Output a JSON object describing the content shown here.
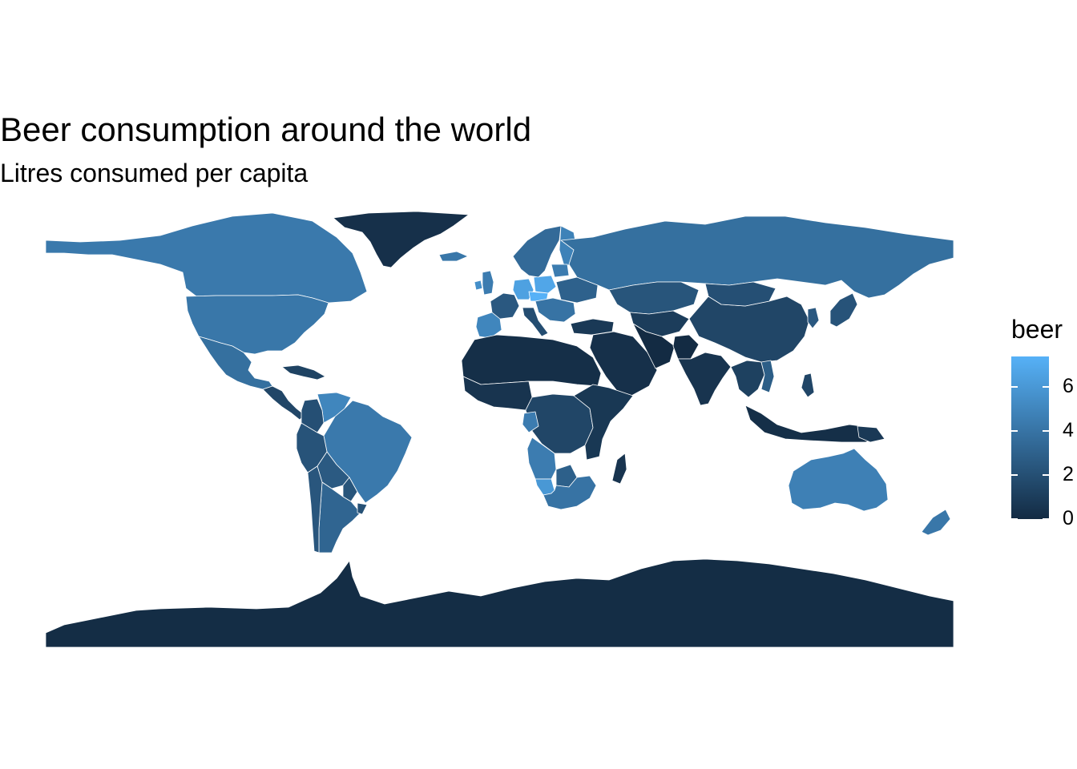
{
  "title": "Beer consumption around the world",
  "subtitle": "Litres consumed per capita",
  "legend": {
    "title": "beer",
    "ticks": [
      "0",
      "2",
      "4",
      "6"
    ],
    "tick_values": [
      0,
      2,
      4,
      6
    ],
    "min": 0,
    "max": 7.4,
    "low_color": "#132B43",
    "high_color": "#56B1F7"
  },
  "colors": {
    "border": "#ffffff",
    "ocean": "#ffffff"
  },
  "chart_data": {
    "type": "choropleth",
    "variable": "beer",
    "regions": [
      {
        "name": "Greenland",
        "value": 0.3
      },
      {
        "name": "Canada",
        "value": 4.3
      },
      {
        "name": "USA",
        "value": 4.2
      },
      {
        "name": "Mexico",
        "value": 3.8
      },
      {
        "name": "Central America",
        "value": 1.5
      },
      {
        "name": "Caribbean",
        "value": 1.3
      },
      {
        "name": "Venezuela",
        "value": 5.0
      },
      {
        "name": "Colombia",
        "value": 2.0
      },
      {
        "name": "Brazil",
        "value": 4.3
      },
      {
        "name": "Peru",
        "value": 2.2
      },
      {
        "name": "Bolivia",
        "value": 2.6
      },
      {
        "name": "Argentina",
        "value": 3.2
      },
      {
        "name": "Chile",
        "value": 2.4
      },
      {
        "name": "Uruguay",
        "value": 2.1
      },
      {
        "name": "Paraguay",
        "value": 2.3
      },
      {
        "name": "UK",
        "value": 4.5
      },
      {
        "name": "Ireland",
        "value": 5.5
      },
      {
        "name": "Iceland",
        "value": 4.2
      },
      {
        "name": "Spain",
        "value": 5.0
      },
      {
        "name": "France",
        "value": 2.5
      },
      {
        "name": "Germany",
        "value": 6.5
      },
      {
        "name": "Poland",
        "value": 6.8
      },
      {
        "name": "Czech Republic",
        "value": 7.4
      },
      {
        "name": "Italy",
        "value": 1.9
      },
      {
        "name": "Balkans",
        "value": 4.0
      },
      {
        "name": "Scandinavia",
        "value": 3.5
      },
      {
        "name": "Finland",
        "value": 4.8
      },
      {
        "name": "Baltics",
        "value": 4.5
      },
      {
        "name": "Ukraine",
        "value": 3.0
      },
      {
        "name": "Russia",
        "value": 3.8
      },
      {
        "name": "Kazakhstan",
        "value": 2.3
      },
      {
        "name": "Central Asia",
        "value": 1.0
      },
      {
        "name": "Turkey",
        "value": 0.8
      },
      {
        "name": "Middle East",
        "value": 0.3
      },
      {
        "name": "Iran",
        "value": 0.0
      },
      {
        "name": "Afghanistan",
        "value": 0.0
      },
      {
        "name": "India",
        "value": 0.5
      },
      {
        "name": "China",
        "value": 1.5
      },
      {
        "name": "Mongolia",
        "value": 2.0
      },
      {
        "name": "Japan",
        "value": 2.2
      },
      {
        "name": "Korea",
        "value": 2.5
      },
      {
        "name": "Southeast Asia",
        "value": 1.2
      },
      {
        "name": "Vietnam",
        "value": 2.8
      },
      {
        "name": "Indonesia",
        "value": 0.2
      },
      {
        "name": "Philippines",
        "value": 1.5
      },
      {
        "name": "North Africa",
        "value": 0.2
      },
      {
        "name": "West Africa",
        "value": 0.5
      },
      {
        "name": "Central Africa",
        "value": 1.5
      },
      {
        "name": "Gabon",
        "value": 4.5
      },
      {
        "name": "East Africa",
        "value": 0.7
      },
      {
        "name": "Angola",
        "value": 4.5
      },
      {
        "name": "Namibia",
        "value": 6.0
      },
      {
        "name": "Botswana",
        "value": 2.9
      },
      {
        "name": "South Africa",
        "value": 4.0
      },
      {
        "name": "Madagascar",
        "value": 0.5
      },
      {
        "name": "Australia",
        "value": 4.7
      },
      {
        "name": "New Zealand",
        "value": 4.2
      },
      {
        "name": "Papua New Guinea",
        "value": 0.8
      },
      {
        "name": "Antarctica",
        "value": 0.1
      }
    ]
  }
}
